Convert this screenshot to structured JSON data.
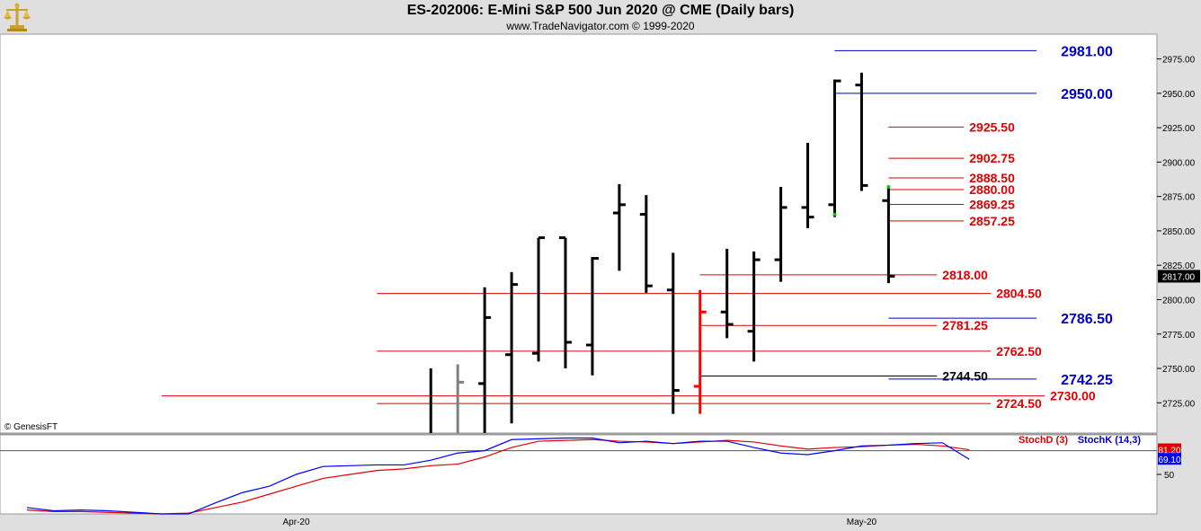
{
  "header": {
    "title": "ES-202006:  E-Mini S&P 500 Jun 2020 @ CME  (Daily bars)",
    "subtitle": "www.TradeNavigator.com © 1999-2020",
    "logo_icon": "gold-scales-logo-icon"
  },
  "footer": {
    "copyright": "© GenesisFT"
  },
  "colors": {
    "background": "#ffffff",
    "frame": "#dfdfdf",
    "bar_normal": "#000000",
    "bar_gray": "#808080",
    "bar_red": "#ff0000",
    "level_red": "#e00000",
    "level_blue": "#0000cc",
    "level_black": "#000000",
    "stochd": "#e00000",
    "stochk": "#0000ff"
  },
  "chart_data": [
    {
      "type": "ohlc",
      "title": "ES-202006:  E-Mini S&P 500 Jun 2020 @ CME  (Daily bars)",
      "ylim": [
        2703,
        2993
      ],
      "y_ticks": [
        "2725.00",
        "2750.00",
        "2775.00",
        "2800.00",
        "2825.00",
        "2850.00",
        "2875.00",
        "2900.00",
        "2925.00",
        "2950.00",
        "2975.00"
      ],
      "x_labels": [
        {
          "label": "Apr-20",
          "bar": 10
        },
        {
          "label": "May-20",
          "bar": 31
        }
      ],
      "last_price_label": "2817.00",
      "last_price": 2817,
      "bars": [
        {
          "i": 15,
          "open": null,
          "high": 2750,
          "low": 2703,
          "close": null,
          "color": "black"
        },
        {
          "i": 16,
          "open": null,
          "high": 2753,
          "low": 2703,
          "close": 2740,
          "color": "gray"
        },
        {
          "i": 17,
          "open": 2739,
          "high": 2809,
          "low": 2703,
          "close": 2787,
          "color": "black"
        },
        {
          "i": 18,
          "open": 2760,
          "high": 2820,
          "low": 2710,
          "close": 2811,
          "color": "black"
        },
        {
          "i": 19,
          "open": 2761,
          "high": 2845,
          "low": 2755,
          "close": 2845,
          "color": "black"
        },
        {
          "i": 20,
          "open": 2845,
          "high": 2845,
          "low": 2750,
          "close": 2769,
          "color": "black"
        },
        {
          "i": 21,
          "open": 2767,
          "high": 2831,
          "low": 2745,
          "close": 2830,
          "color": "black"
        },
        {
          "i": 22,
          "open": 2863,
          "high": 2884,
          "low": 2821,
          "close": 2869,
          "color": "black"
        },
        {
          "i": 23,
          "open": 2862,
          "high": 2876,
          "low": 2805,
          "close": 2810,
          "color": "black"
        },
        {
          "i": 24,
          "open": 2807,
          "high": 2834,
          "low": 2717,
          "close": 2734,
          "color": "black"
        },
        {
          "i": 25,
          "open": 2737,
          "high": 2807,
          "low": 2717,
          "close": 2791,
          "color": "red"
        },
        {
          "i": 26,
          "open": 2791,
          "high": 2837,
          "low": 2772,
          "close": 2782,
          "color": "black"
        },
        {
          "i": 27,
          "open": 2777,
          "high": 2835,
          "low": 2755,
          "close": 2829,
          "color": "black"
        },
        {
          "i": 28,
          "open": 2829,
          "high": 2882,
          "low": 2813,
          "close": 2867,
          "color": "black"
        },
        {
          "i": 29,
          "open": 2867,
          "high": 2914,
          "low": 2852,
          "close": 2860,
          "color": "black"
        },
        {
          "i": 30,
          "open": 2869,
          "high": 2960,
          "low": 2860,
          "close": 2959,
          "color": "black"
        },
        {
          "i": 31,
          "open": 2956,
          "high": 2965,
          "low": 2879,
          "close": 2883,
          "color": "black"
        },
        {
          "i": 32,
          "open": 2872,
          "high": 2882,
          "low": 2812,
          "close": 2817,
          "color": "black"
        }
      ],
      "levels": [
        {
          "label": "2981.00",
          "value": 2981,
          "color": "blue",
          "from_bar": 30,
          "to_bar": 37.5,
          "label_bar": 38.4,
          "big": true
        },
        {
          "label": "2950.00",
          "value": 2950,
          "color": "blue",
          "from_bar": 30,
          "to_bar": 37.5,
          "label_bar": 38.4,
          "big": true
        },
        {
          "label": "2925.50",
          "value": 2925.5,
          "color": "red",
          "from_bar": 32,
          "to_bar": 34.8,
          "label_bar": 35,
          "big": false
        },
        {
          "label": "2902.75",
          "value": 2902.75,
          "color": "red",
          "from_bar": 32,
          "to_bar": 34.8,
          "label_bar": 35,
          "big": false
        },
        {
          "label": "2888.50",
          "value": 2888.5,
          "color": "red",
          "from_bar": 32,
          "to_bar": 34.8,
          "label_bar": 35,
          "big": false
        },
        {
          "label": "2880.00",
          "value": 2880,
          "color": "red",
          "from_bar": 32,
          "to_bar": 34.8,
          "label_bar": 35,
          "big": false
        },
        {
          "label": "2869.25",
          "value": 2869.25,
          "color": "red",
          "from_bar": 32,
          "to_bar": 34.8,
          "label_bar": 35,
          "big": false
        },
        {
          "label": "2857.25",
          "value": 2857.25,
          "color": "red",
          "from_bar": 32,
          "to_bar": 34.8,
          "label_bar": 35,
          "big": false
        },
        {
          "label": "2818.00",
          "value": 2818,
          "color": "red",
          "from_bar": 25,
          "to_bar": 33.8,
          "label_bar": 34,
          "big": false
        },
        {
          "label": "2804.50",
          "value": 2804.5,
          "color": "red",
          "from_bar": 13,
          "to_bar": 35.8,
          "label_bar": 36,
          "big": false
        },
        {
          "label": "2786.50",
          "value": 2786.5,
          "color": "blue",
          "from_bar": 32,
          "to_bar": 37.5,
          "label_bar": 38.4,
          "big": true
        },
        {
          "label": "2781.25",
          "value": 2781.25,
          "color": "red",
          "from_bar": 25,
          "to_bar": 33.8,
          "label_bar": 34,
          "big": false
        },
        {
          "label": "2762.50",
          "value": 2762.5,
          "color": "red",
          "from_bar": 13,
          "to_bar": 35.8,
          "label_bar": 36,
          "big": false
        },
        {
          "label": "2744.50",
          "value": 2744.5,
          "color": "black",
          "from_bar": 25,
          "to_bar": 33.8,
          "label_bar": 34,
          "big": false
        },
        {
          "label": "2742.25",
          "value": 2742.25,
          "color": "blue",
          "from_bar": 32,
          "to_bar": 37.5,
          "label_bar": 38.4,
          "big": true
        },
        {
          "label": "2730.00",
          "value": 2730,
          "color": "red",
          "from_bar": 5,
          "to_bar": 37.8,
          "label_bar": 38,
          "big": false
        },
        {
          "label": "2724.50",
          "value": 2724.5,
          "color": "red",
          "from_bar": 13,
          "to_bar": 35.8,
          "label_bar": 36,
          "big": false
        }
      ],
      "markers": [
        {
          "bar": 30.0,
          "value": 2862,
          "color": "#00cc00"
        },
        {
          "bar": 32.0,
          "value": 2882,
          "color": "#00cc00"
        }
      ]
    },
    {
      "type": "line",
      "ylim": [
        0,
        100
      ],
      "y_ticks": [
        "50"
      ],
      "reference_line": 80,
      "series": [
        {
          "name": "StochD (3)",
          "color": "red",
          "last_label": "81.20",
          "values": [
            5,
            3,
            3,
            2,
            1,
            0,
            1,
            8,
            15,
            25,
            35,
            45,
            50,
            55,
            57,
            61,
            63,
            72,
            84,
            92,
            93,
            94,
            92,
            91,
            89,
            91,
            93,
            91,
            86,
            82,
            84,
            85,
            87,
            88,
            86,
            81.2
          ]
        },
        {
          "name": "StochK (14,3)",
          "color": "blue",
          "last_label": "69.10",
          "values": [
            8,
            4,
            5,
            4,
            2,
            0,
            0,
            14,
            27,
            35,
            50,
            60,
            61,
            62,
            62,
            68,
            77,
            80,
            94,
            95,
            96,
            96,
            90,
            92,
            89,
            92,
            92,
            84,
            77,
            75,
            80,
            86,
            87,
            89,
            90,
            69.1
          ]
        }
      ]
    }
  ]
}
